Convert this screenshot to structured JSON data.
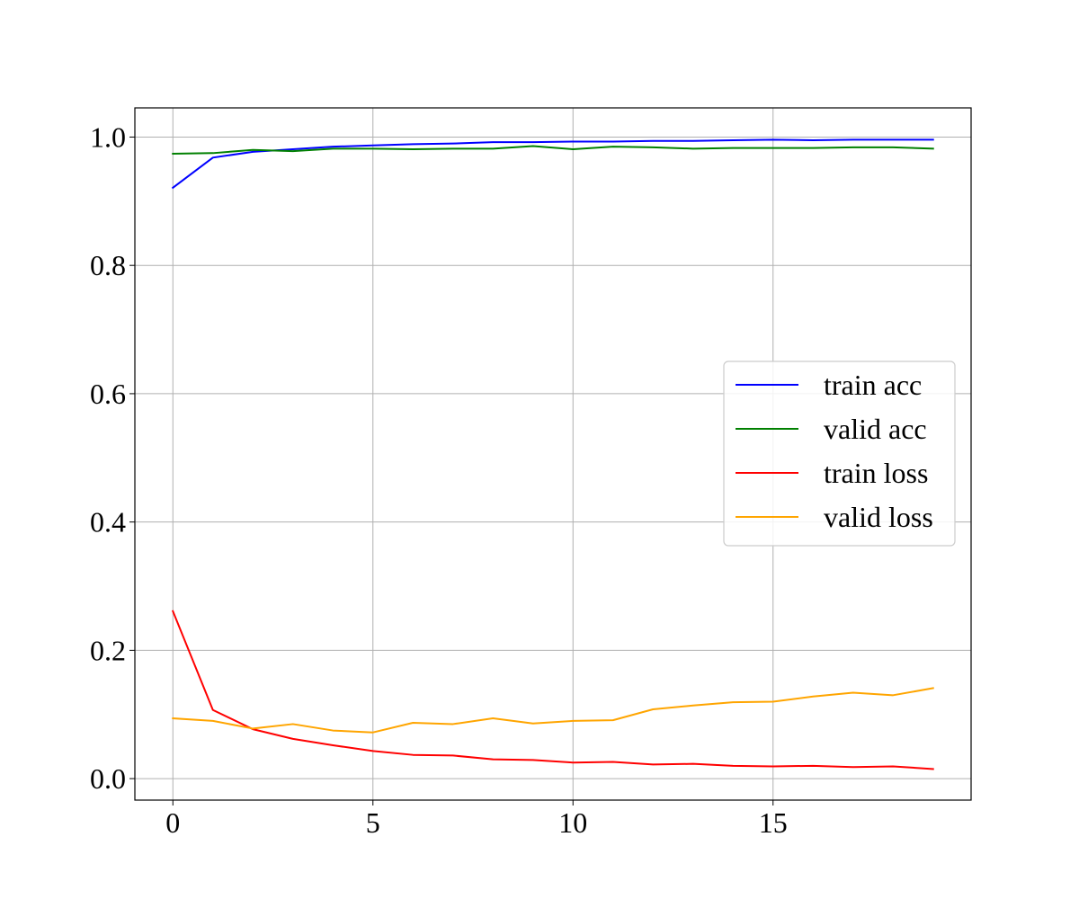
{
  "chart_data": {
    "type": "line",
    "title": "",
    "xlabel": "",
    "ylabel": "",
    "xlim": [
      -0.95,
      19.95
    ],
    "ylim": [
      -0.0335,
      1.0455
    ],
    "grid": true,
    "legend_position": "center-right",
    "xticks": [
      0,
      5,
      10,
      15
    ],
    "xtick_labels": [
      "0",
      "5",
      "10",
      "15"
    ],
    "yticks": [
      0.0,
      0.2,
      0.4,
      0.6,
      0.8,
      1.0
    ],
    "ytick_labels": [
      "0.0",
      "0.2",
      "0.4",
      "0.6",
      "0.8",
      "1.0"
    ],
    "x": [
      0,
      1,
      2,
      3,
      4,
      5,
      6,
      7,
      8,
      9,
      10,
      11,
      12,
      13,
      14,
      15,
      16,
      17,
      18,
      19
    ],
    "series": [
      {
        "name": "train acc",
        "color": "#0000ff",
        "values": [
          0.921,
          0.968,
          0.977,
          0.981,
          0.985,
          0.987,
          0.989,
          0.99,
          0.992,
          0.992,
          0.993,
          0.993,
          0.994,
          0.994,
          0.995,
          0.996,
          0.995,
          0.996,
          0.996,
          0.996
        ]
      },
      {
        "name": "valid acc",
        "color": "#008000",
        "values": [
          0.974,
          0.975,
          0.98,
          0.978,
          0.982,
          0.982,
          0.981,
          0.982,
          0.982,
          0.986,
          0.981,
          0.985,
          0.984,
          0.982,
          0.983,
          0.983,
          0.983,
          0.984,
          0.984,
          0.982
        ]
      },
      {
        "name": "train loss",
        "color": "#ff0000",
        "values": [
          0.261,
          0.107,
          0.077,
          0.062,
          0.052,
          0.043,
          0.037,
          0.036,
          0.03,
          0.029,
          0.025,
          0.026,
          0.022,
          0.023,
          0.02,
          0.019,
          0.02,
          0.018,
          0.019,
          0.015
        ]
      },
      {
        "name": "valid loss",
        "color": "#ffa500",
        "values": [
          0.094,
          0.09,
          0.078,
          0.085,
          0.075,
          0.072,
          0.087,
          0.085,
          0.094,
          0.086,
          0.09,
          0.091,
          0.108,
          0.114,
          0.119,
          0.12,
          0.128,
          0.134,
          0.13,
          0.141
        ]
      }
    ]
  }
}
